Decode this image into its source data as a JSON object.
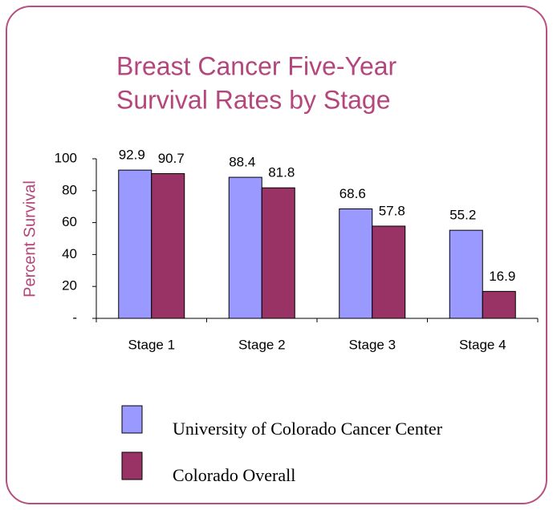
{
  "chart_data": {
    "type": "bar",
    "title": [
      "Breast Cancer Five-Year",
      "Survival Rates by Stage"
    ],
    "y_label": "Percent Survival",
    "categories": [
      "Stage 1",
      "Stage 2",
      "Stage 3",
      "Stage 4"
    ],
    "series": [
      {
        "name": "University of Colorado Cancer Center",
        "color": "#9999ff",
        "values": [
          92.9,
          88.4,
          68.6,
          55.2
        ]
      },
      {
        "name": "Colorado Overall",
        "color": "#993366",
        "values": [
          90.7,
          81.8,
          57.8,
          16.9
        ]
      }
    ],
    "ylim": [
      0,
      100
    ],
    "yticks": [
      {
        "value": 0,
        "label": "-"
      },
      20,
      40,
      60,
      80,
      100
    ]
  }
}
